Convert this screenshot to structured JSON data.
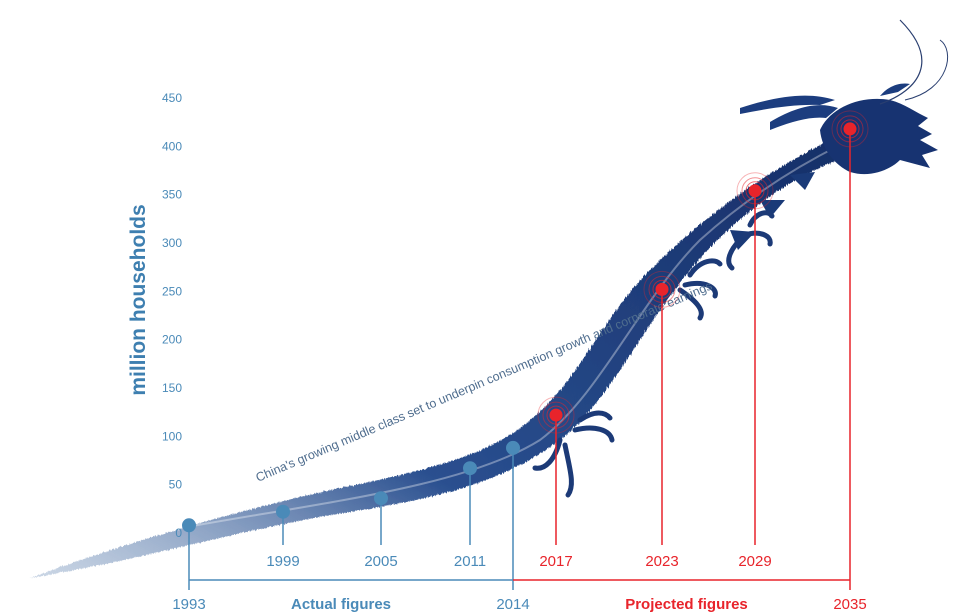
{
  "chart_data": {
    "type": "line",
    "ylabel": "million households",
    "yticks": [
      0,
      50,
      100,
      150,
      200,
      250,
      300,
      350,
      400,
      450
    ],
    "ylim": [
      0,
      450
    ],
    "annotation": "China's growing middle class set to underpin consumption growth and corporate earnings",
    "series": [
      {
        "name": "Actual figures",
        "color": "#4a8ab8",
        "points": [
          {
            "x": "1993",
            "y": 8
          },
          {
            "x": "1999",
            "y": 22
          },
          {
            "x": "2005",
            "y": 36
          },
          {
            "x": "2011",
            "y": 67
          },
          {
            "x": "2014",
            "y": 88
          }
        ]
      },
      {
        "name": "Projected figures",
        "color": "#e8242b",
        "points": [
          {
            "x": "2017",
            "y": 122
          },
          {
            "x": "2023",
            "y": 252
          },
          {
            "x": "2029",
            "y": 354
          },
          {
            "x": "2035",
            "y": 418
          }
        ]
      }
    ],
    "dragon_color": "#1a3a78",
    "grid": false
  }
}
